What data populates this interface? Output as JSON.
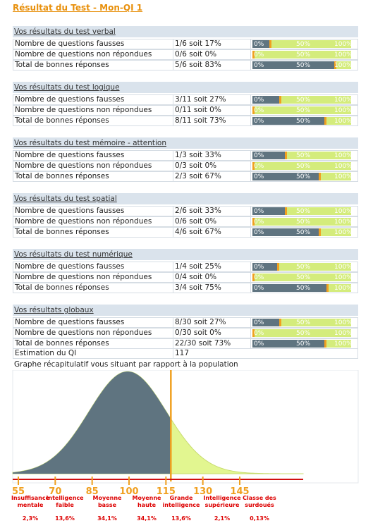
{
  "title": "Résultat du Test - Mon-QI 1",
  "bar_labels": [
    "0%",
    "50%",
    "100%"
  ],
  "sections": [
    {
      "heading": "Vos résultats du test verbal",
      "rows": [
        {
          "label": "Nombre de questions fausses",
          "result": "1/6 soit 17%",
          "percent": 17
        },
        {
          "label": "Nombre de questions non répondues",
          "result": "0/6 soit 0%",
          "percent": 0
        },
        {
          "label": "Total de bonnes réponses",
          "result": "5/6 soit 83%",
          "percent": 83
        }
      ]
    },
    {
      "heading": "Vos résultats du test logique",
      "rows": [
        {
          "label": "Nombre de questions fausses",
          "result": "3/11 soit 27%",
          "percent": 27
        },
        {
          "label": "Nombre de questions non répondues",
          "result": "0/11 soit 0%",
          "percent": 0
        },
        {
          "label": "Total de bonnes réponses",
          "result": "8/11 soit 73%",
          "percent": 73
        }
      ]
    },
    {
      "heading": "Vos résultats du test mémoire - attention",
      "rows": [
        {
          "label": "Nombre de questions fausses",
          "result": "1/3 soit 33%",
          "percent": 33
        },
        {
          "label": "Nombre de questions non répondues",
          "result": "0/3 soit 0%",
          "percent": 0
        },
        {
          "label": "Total de bonnes réponses",
          "result": "2/3 soit 67%",
          "percent": 67
        }
      ]
    },
    {
      "heading": "Vos résultats du test spatial",
      "rows": [
        {
          "label": "Nombre de questions fausses",
          "result": "2/6 soit 33%",
          "percent": 33
        },
        {
          "label": "Nombre de questions non répondues",
          "result": "0/6 soit 0%",
          "percent": 0
        },
        {
          "label": "Total de bonnes réponses",
          "result": "4/6 soit 67%",
          "percent": 67
        }
      ]
    },
    {
      "heading": "Vos résultats du test numérique",
      "rows": [
        {
          "label": "Nombre de questions fausses",
          "result": "1/4 soit 25%",
          "percent": 25
        },
        {
          "label": "Nombre de questions non répondues",
          "result": "0/4 soit 0%",
          "percent": 0
        },
        {
          "label": "Total de bonnes réponses",
          "result": "3/4 soit 75%",
          "percent": 75
        }
      ]
    },
    {
      "heading": "Vos résultats globaux",
      "rows": [
        {
          "label": "Nombre de questions fausses",
          "result": "8/30 soit 27%",
          "percent": 27
        },
        {
          "label": "Nombre de questions non répondues",
          "result": "0/30 soit 0%",
          "percent": 0
        },
        {
          "label": "Total de bonnes réponses",
          "result": "22/30 soit 73%",
          "percent": 73
        }
      ]
    }
  ],
  "estimation": {
    "label": "Estimation du QI",
    "value": 117
  },
  "graph": {
    "title": "Graphe récapitulatif vous situant par rapport à la population",
    "xticks": [
      55,
      70,
      85,
      100,
      115,
      130,
      145
    ],
    "classes": [
      {
        "name": "Insuffisance mentale",
        "share": "2,3%"
      },
      {
        "name": "Intelligence faible",
        "share": "13,6%"
      },
      {
        "name": "Moyenne basse",
        "share": "34,1%"
      },
      {
        "name": "Moyenne haute",
        "share": "34,1%"
      },
      {
        "name": "Grande intelligence",
        "share": "13,6%"
      },
      {
        "name": "Intelligence supérieure",
        "share": "2,1%"
      },
      {
        "name": "Classe des surdoués",
        "share": "0,13%"
      }
    ]
  }
}
